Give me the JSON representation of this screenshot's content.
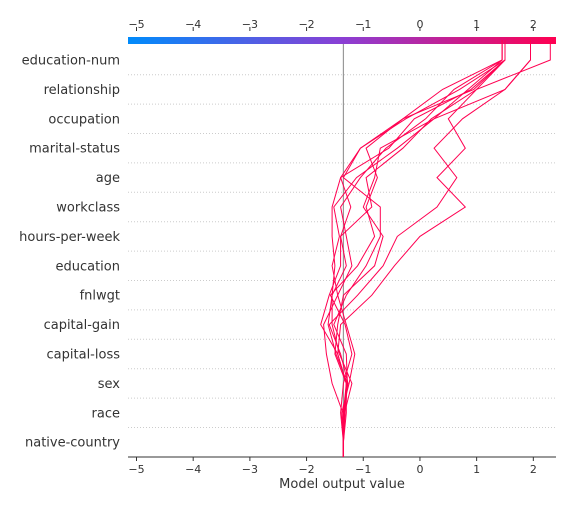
{
  "chart_data": {
    "type": "line",
    "subtype": "shap-decision-plot",
    "xlabel": "Model output value",
    "xlim": [
      -5.15,
      2.4
    ],
    "xticks": [
      -5,
      -4,
      -3,
      -2,
      -1,
      0,
      1,
      2
    ],
    "xtick_labels": [
      "−5",
      "−4",
      "−3",
      "−2",
      "−1",
      "0",
      "1",
      "2"
    ],
    "base_value": -1.35,
    "features": [
      "education-num",
      "relationship",
      "occupation",
      "marital-status",
      "age",
      "workclass",
      "hours-per-week",
      "education",
      "fnlwgt",
      "capital-gain",
      "capital-loss",
      "sex",
      "race",
      "native-country"
    ],
    "colorbar": {
      "from": "#008bfb",
      "mid": "#8a3fd4",
      "to": "#ff0051"
    },
    "line_color": "#ff0051",
    "grid": true,
    "series": [
      {
        "values": [
          -1.35,
          -1.36,
          -1.55,
          -1.65,
          -1.7,
          -1.45,
          -1.55,
          -1.42,
          -1.52,
          -1.12,
          -0.4,
          0.25,
          0.85,
          1.45
        ]
      },
      {
        "values": [
          -1.35,
          -1.38,
          -1.25,
          -1.15,
          -1.3,
          -1.45,
          -1.2,
          -1.3,
          -1.4,
          -1.05,
          -0.6,
          0.1,
          0.6,
          1.45
        ]
      },
      {
        "values": [
          -1.35,
          -1.4,
          -1.35,
          -1.2,
          -1.32,
          -1.58,
          -1.1,
          -0.8,
          -0.95,
          -0.75,
          -0.95,
          -0.3,
          0.95,
          1.5
        ]
      },
      {
        "values": [
          -1.35,
          -1.33,
          -1.2,
          -1.42,
          -1.55,
          -1.55,
          -1.5,
          -1.55,
          -1.55,
          -1.4,
          -1.05,
          -0.25,
          0.7,
          1.5
        ]
      },
      {
        "values": [
          -1.35,
          -1.32,
          -1.28,
          -1.3,
          -1.52,
          -1.3,
          -0.95,
          -0.7,
          -0.7,
          -1.35,
          -1.05,
          -0.3,
          0.4,
          1.45
        ]
      },
      {
        "values": [
          -1.35,
          -1.33,
          -1.3,
          -1.45,
          -1.75,
          -1.6,
          -1.4,
          -1.4,
          -1.22,
          -1.4,
          -0.55,
          -0.1,
          0.9,
          1.5
        ]
      },
      {
        "values": [
          -1.35,
          -1.3,
          -1.3,
          -1.5,
          -1.45,
          -1.35,
          -0.8,
          -0.65,
          -1.0,
          -0.8,
          -0.7,
          0.25,
          1.5,
          1.95
        ]
      },
      {
        "values": [
          -1.35,
          -1.34,
          -1.28,
          -1.48,
          -1.62,
          -1.55,
          -1.3,
          -1.4,
          -0.85,
          -0.95,
          -0.3,
          0.2,
          1.0,
          1.5
        ]
      },
      {
        "values": [
          -1.35,
          -1.35,
          -1.3,
          -1.45,
          -1.4,
          -0.85,
          -0.45,
          0.0,
          0.8,
          0.3,
          0.8,
          0.5,
          1.0,
          2.3
        ]
      },
      {
        "values": [
          -1.35,
          -1.36,
          -1.27,
          -1.4,
          -1.6,
          -1.1,
          -0.65,
          -0.4,
          0.3,
          0.65,
          0.25,
          0.75,
          1.5,
          1.95
        ]
      }
    ]
  }
}
